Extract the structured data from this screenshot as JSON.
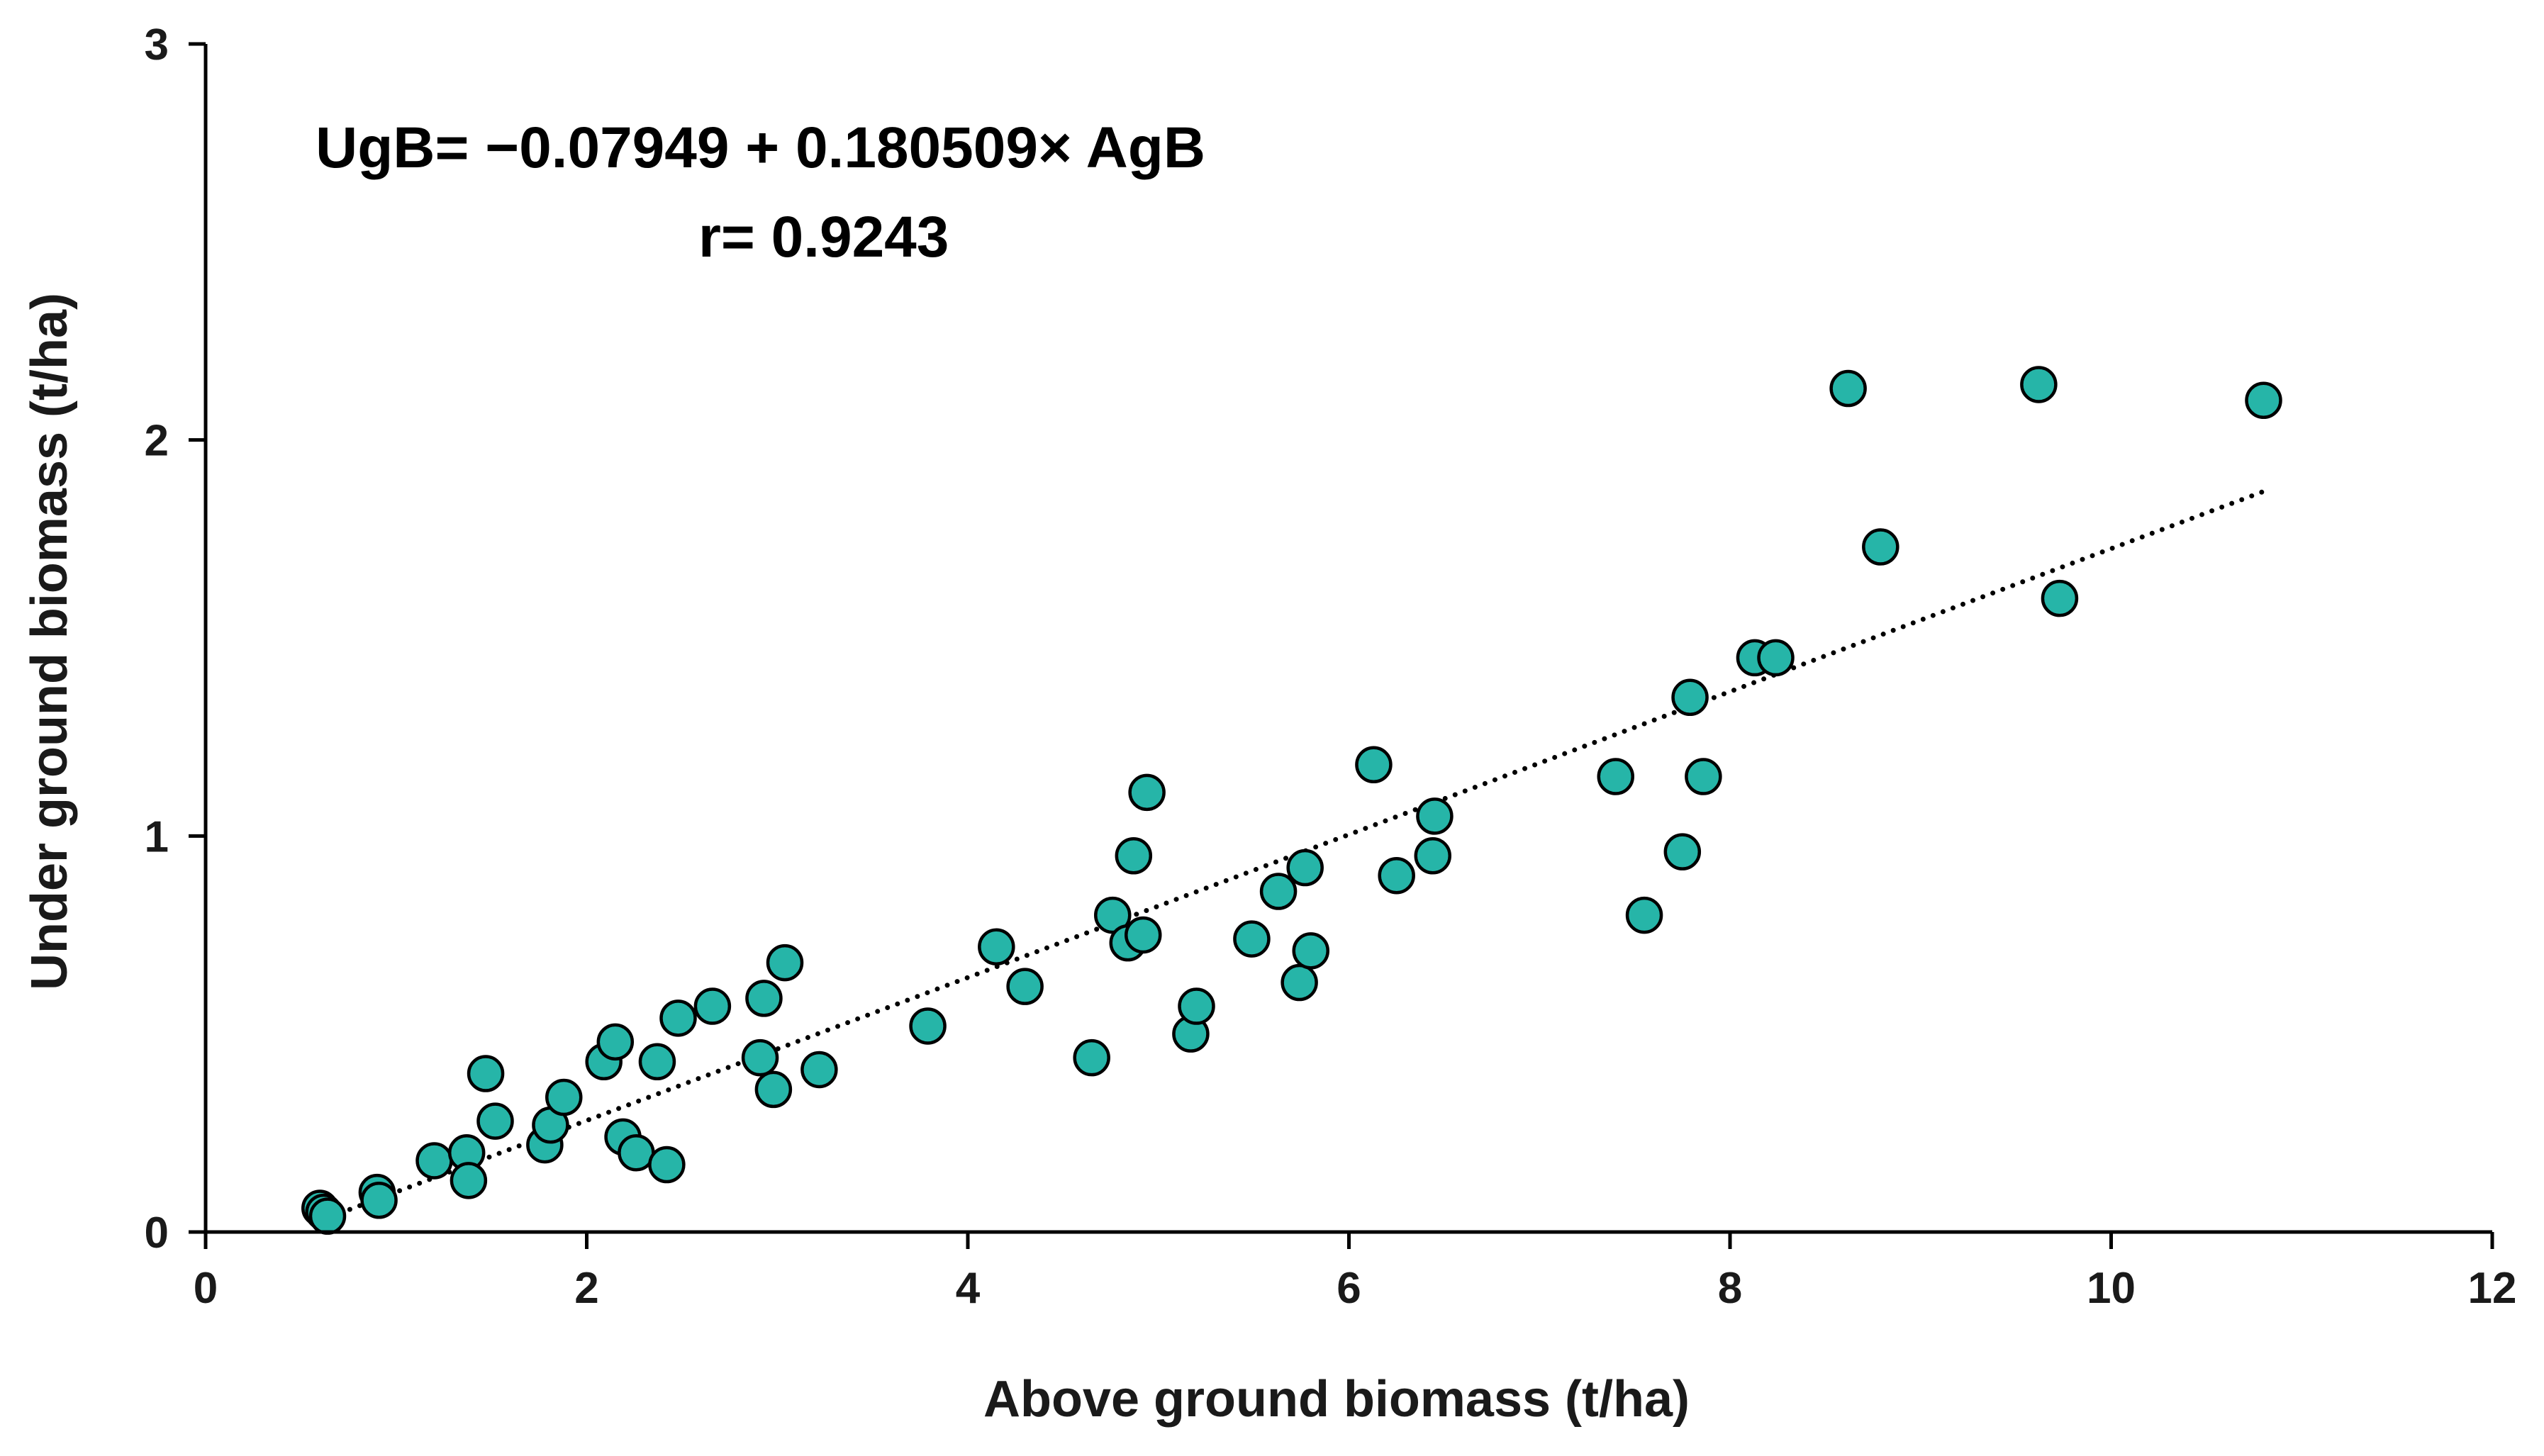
{
  "chart_data": {
    "type": "scatter",
    "title": "",
    "xlabel": "Above ground biomass (t/ha)",
    "ylabel": "Under ground biomass (t/ha)",
    "xlim": [
      0,
      12
    ],
    "ylim": [
      0,
      3
    ],
    "x_ticks": [
      0,
      2,
      4,
      6,
      8,
      10,
      12
    ],
    "y_ticks": [
      0,
      1,
      2,
      3
    ],
    "x_tick_labels": [
      "0",
      "2",
      "4",
      "6",
      "8",
      "10",
      "12"
    ],
    "y_tick_labels": [
      "0",
      "1",
      "2",
      "3"
    ],
    "grid": false,
    "legend": "none",
    "annotations": {
      "equation": "UgB= −0.07949 + 0.180509× AgB",
      "correlation": "r= 0.9243"
    },
    "trendline": {
      "style": "dotted",
      "intercept": -0.07949,
      "slope": 0.180509,
      "x_range": [
        0.6,
        10.8
      ]
    },
    "colors": {
      "marker_fill": "#26b5a8",
      "marker_stroke": "#000000",
      "axis": "#000000",
      "trendline": "#000000"
    },
    "series": [
      {
        "points": [
          [
            0.6,
            0.06
          ],
          [
            0.62,
            0.05
          ],
          [
            0.64,
            0.04
          ],
          [
            0.9,
            0.1
          ],
          [
            0.91,
            0.08
          ],
          [
            1.2,
            0.18
          ],
          [
            1.37,
            0.2
          ],
          [
            1.38,
            0.13
          ],
          [
            1.47,
            0.4
          ],
          [
            1.52,
            0.28
          ],
          [
            1.78,
            0.22
          ],
          [
            1.81,
            0.27
          ],
          [
            1.88,
            0.34
          ],
          [
            2.09,
            0.43
          ],
          [
            2.15,
            0.48
          ],
          [
            2.19,
            0.24
          ],
          [
            2.26,
            0.2
          ],
          [
            2.37,
            0.43
          ],
          [
            2.42,
            0.17
          ],
          [
            2.48,
            0.54
          ],
          [
            2.66,
            0.57
          ],
          [
            2.91,
            0.44
          ],
          [
            2.93,
            0.59
          ],
          [
            2.98,
            0.36
          ],
          [
            3.04,
            0.68
          ],
          [
            3.22,
            0.41
          ],
          [
            3.79,
            0.52
          ],
          [
            4.15,
            0.72
          ],
          [
            4.3,
            0.62
          ],
          [
            4.65,
            0.44
          ],
          [
            4.76,
            0.8
          ],
          [
            4.84,
            0.73
          ],
          [
            4.87,
            0.95
          ],
          [
            4.92,
            0.75
          ],
          [
            4.94,
            1.11
          ],
          [
            5.17,
            0.5
          ],
          [
            5.2,
            0.57
          ],
          [
            5.49,
            0.74
          ],
          [
            5.63,
            0.86
          ],
          [
            5.74,
            0.63
          ],
          [
            5.77,
            0.92
          ],
          [
            5.8,
            0.71
          ],
          [
            6.13,
            1.18
          ],
          [
            6.25,
            0.9
          ],
          [
            6.44,
            0.95
          ],
          [
            6.45,
            1.05
          ],
          [
            7.4,
            1.15
          ],
          [
            7.55,
            0.8
          ],
          [
            7.75,
            0.96
          ],
          [
            7.79,
            1.35
          ],
          [
            7.86,
            1.15
          ],
          [
            8.13,
            1.45
          ],
          [
            8.24,
            1.45
          ],
          [
            8.62,
            2.13
          ],
          [
            8.79,
            1.73
          ],
          [
            9.62,
            2.14
          ],
          [
            9.73,
            1.6
          ],
          [
            10.8,
            2.1
          ]
        ]
      }
    ]
  }
}
